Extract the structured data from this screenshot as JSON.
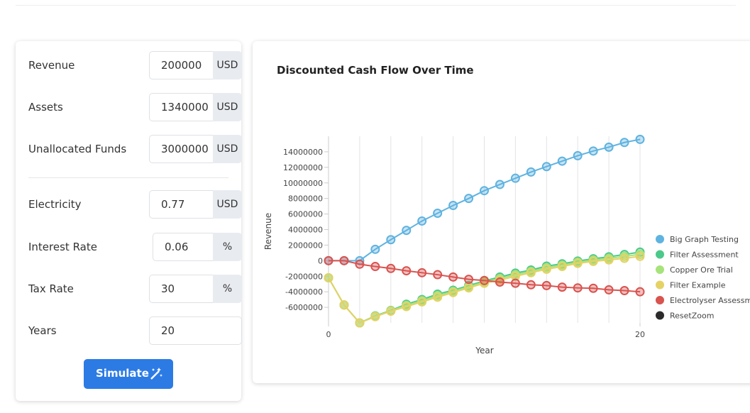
{
  "form": {
    "fields": [
      {
        "label": "Revenue",
        "value": "200000",
        "unit": "USD"
      },
      {
        "label": "Assets",
        "value": "1340000",
        "unit": "USD"
      },
      {
        "label": "Unallocated Funds",
        "value": "3000000",
        "unit": "USD"
      },
      {
        "label": "Electricity",
        "value": "0.77",
        "unit": "USD"
      },
      {
        "label": "Interest Rate",
        "value": "0.06",
        "unit": "%"
      },
      {
        "label": "Tax Rate",
        "value": "30",
        "unit": "%"
      },
      {
        "label": "Years",
        "value": "20"
      }
    ],
    "button": "Simulate"
  },
  "chart_data": {
    "type": "line",
    "title": "Discounted Cash Flow Over Time",
    "x_label": "Year",
    "y_label": "Revenue",
    "x": [
      0,
      1,
      2,
      3,
      4,
      5,
      6,
      7,
      8,
      9,
      10,
      11,
      12,
      13,
      14,
      15,
      16,
      17,
      18,
      19,
      20
    ],
    "xlim": [
      0,
      20
    ],
    "xticks": [
      0,
      20
    ],
    "ylim": [
      -8000000,
      16000000
    ],
    "yticks": [
      14000000,
      12000000,
      10000000,
      8000000,
      6000000,
      4000000,
      2000000,
      0,
      -2000000,
      -4000000,
      -6000000
    ],
    "series": [
      {
        "name": "Big Graph Testing",
        "color": "#5fb3e0",
        "values": [
          0,
          0,
          0,
          1460000,
          2700000,
          3900000,
          5100000,
          6100000,
          7100000,
          8000000,
          9000000,
          9800000,
          10600000,
          11400000,
          12100000,
          12800000,
          13500000,
          14100000,
          14600000,
          15200000,
          15600000
        ]
      },
      {
        "name": "Filter Assessment",
        "color": "#4cc98a",
        "values": [
          -2200000,
          -5700000,
          -8000000,
          -7100000,
          -6400000,
          -5600000,
          -5000000,
          -4300000,
          -3800000,
          -3200000,
          -2600000,
          -2100000,
          -1600000,
          -1200000,
          -700000,
          -400000,
          -50000,
          250000,
          500000,
          800000,
          1100000
        ]
      },
      {
        "name": "Copper Ore Trial",
        "color": "#a7e37b",
        "values": [
          -2200000,
          -5700000,
          -8000000,
          -7150000,
          -6450000,
          -5750000,
          -5150000,
          -4500000,
          -3950000,
          -3350000,
          -2750000,
          -2300000,
          -1800000,
          -1380000,
          -900000,
          -580000,
          -200000,
          80000,
          300000,
          550000,
          820000
        ]
      },
      {
        "name": "Filter Example",
        "color": "#e5d264",
        "values": [
          -2200000,
          -5700000,
          -8000000,
          -7200000,
          -6500000,
          -5900000,
          -5300000,
          -4700000,
          -4100000,
          -3500000,
          -2900000,
          -2500000,
          -2000000,
          -1550000,
          -1100000,
          -750000,
          -350000,
          -100000,
          100000,
          300000,
          550000
        ]
      },
      {
        "name": "Electrolyser Assessm",
        "color": "#d9534f",
        "values": [
          0,
          0,
          -450000,
          -750000,
          -1000000,
          -1300000,
          -1550000,
          -1800000,
          -2100000,
          -2400000,
          -2550000,
          -2750000,
          -2900000,
          -3100000,
          -3200000,
          -3400000,
          -3500000,
          -3550000,
          -3750000,
          -3850000,
          -4000000
        ]
      }
    ],
    "reset_zoom": {
      "label": "ResetZoom",
      "color": "#2b2b2b"
    }
  }
}
